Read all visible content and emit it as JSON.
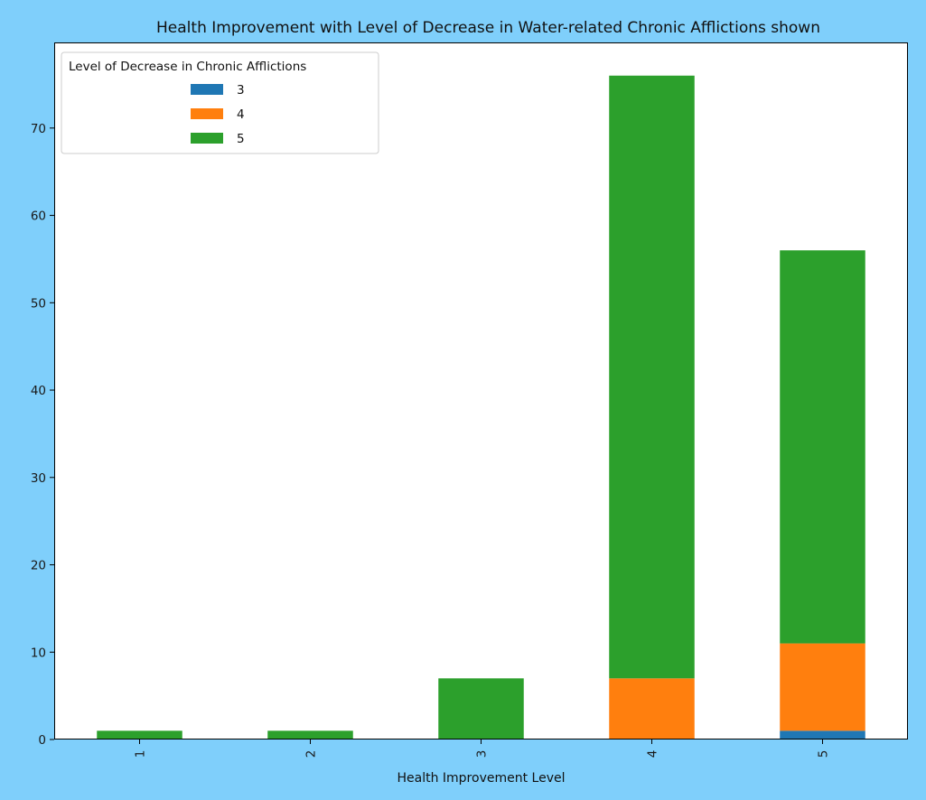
{
  "chart_data": {
    "type": "bar",
    "stacked": true,
    "title": "Health Improvement with Level of Decrease in Water-related Chronic Afflictions shown",
    "xlabel": "Health Improvement Level",
    "ylabel": "",
    "categories": [
      "1",
      "2",
      "3",
      "4",
      "5"
    ],
    "series": [
      {
        "name": "3",
        "values": [
          0,
          0,
          0,
          0,
          1
        ],
        "color": "#1f77b4"
      },
      {
        "name": "4",
        "values": [
          0,
          0,
          0,
          7,
          10
        ],
        "color": "#ff7f0e"
      },
      {
        "name": "5",
        "values": [
          1,
          1,
          7,
          69,
          45
        ],
        "color": "#2ca02c"
      }
    ],
    "ylim": [
      0,
      79.8
    ],
    "yticks": [
      0,
      10,
      20,
      30,
      40,
      50,
      60,
      70
    ],
    "legend": {
      "title": "Level of Decrease in Chronic Afflictions",
      "placement": "top-left"
    },
    "x_tick_rotation": "vertical",
    "grid": false
  }
}
